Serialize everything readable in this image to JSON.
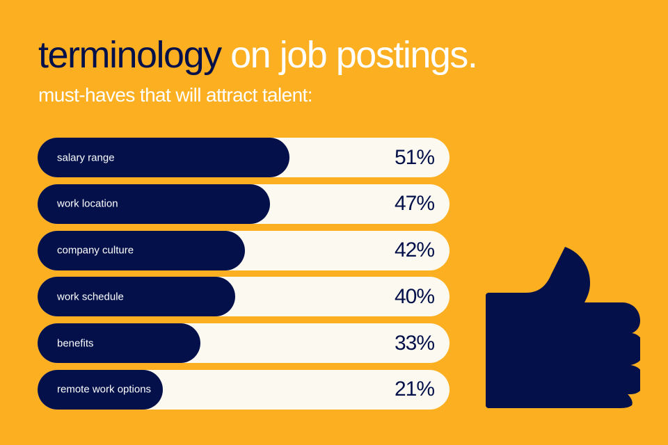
{
  "header": {
    "title_dark": "terminology",
    "title_light": "on job postings.",
    "subtitle": "must-haves that will attract talent:"
  },
  "colors": {
    "background": "#FBAF21",
    "bar_fill": "#03104A",
    "bar_track": "#FCF9F0",
    "text_light": "#FFFFFF"
  },
  "icon": "thumbs-up-icon",
  "chart_data": {
    "type": "bar",
    "orientation": "horizontal",
    "title": "terminology on job postings.",
    "subtitle": "must-haves that will attract talent:",
    "categories": [
      "salary range",
      "work location",
      "company culture",
      "work schedule",
      "benefits",
      "remote work options"
    ],
    "values": [
      51,
      47,
      42,
      40,
      33,
      21
    ],
    "value_labels": [
      "51%",
      "47%",
      "42%",
      "40%",
      "33%",
      "21%"
    ],
    "xlabel": "",
    "ylabel": "",
    "unit": "%",
    "grid": false,
    "legend": null
  }
}
